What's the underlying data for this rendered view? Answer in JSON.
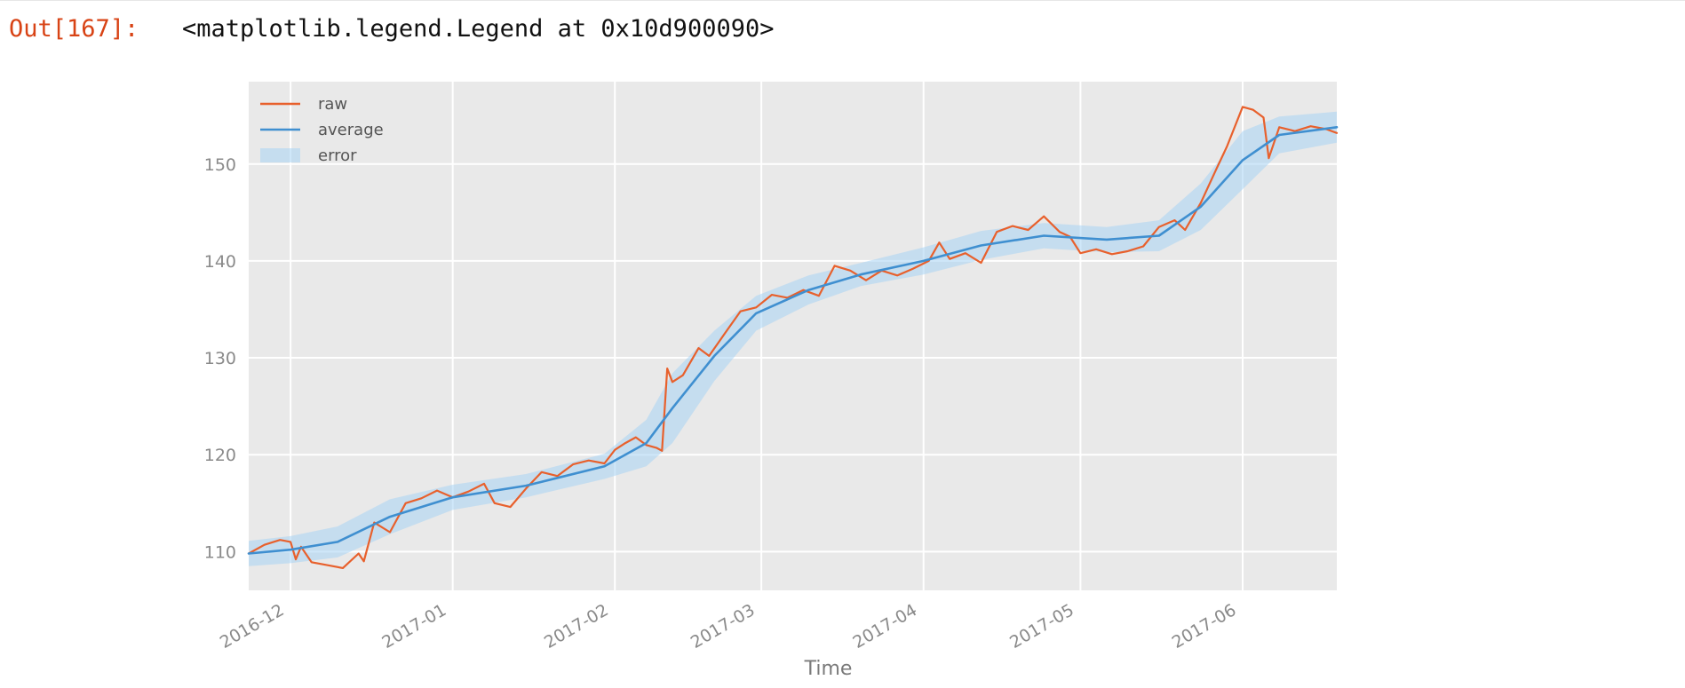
{
  "cell_output": {
    "prompt": "Out[167]:",
    "text": "<matplotlib.legend.Legend at 0x10d900090>"
  },
  "colors": {
    "prompt": "#d84315",
    "raw": "#e8602c",
    "average": "#3f8fd0",
    "error_band": "#a8d4f4",
    "axes_bg": "#e9e9e9",
    "grid": "#ffffff",
    "tick_text": "#8a8a8a"
  },
  "chart_data": {
    "type": "line",
    "style": "ggplot",
    "title": "",
    "xlabel": "Time",
    "ylabel": "",
    "xlim": [
      "2016-11-23",
      "2017-06-19"
    ],
    "ylim": [
      106,
      158.5
    ],
    "x_ticks": [
      "2016-12",
      "2017-01",
      "2017-02",
      "2017-03",
      "2017-04",
      "2017-05",
      "2017-06"
    ],
    "y_ticks": [
      110,
      120,
      130,
      140,
      150
    ],
    "grid": true,
    "legend": {
      "position": "upper-left",
      "entries": [
        "raw",
        "average",
        "error"
      ]
    },
    "series": [
      {
        "name": "raw",
        "color": "#e8602c",
        "points": [
          [
            "2016-11-23",
            109.8
          ],
          [
            "2016-11-26",
            110.7
          ],
          [
            "2016-11-29",
            111.2
          ],
          [
            "2016-12-01",
            111.0
          ],
          [
            "2016-12-02",
            109.2
          ],
          [
            "2016-12-03",
            110.5
          ],
          [
            "2016-12-05",
            108.9
          ],
          [
            "2016-12-08",
            108.6
          ],
          [
            "2016-12-11",
            108.3
          ],
          [
            "2016-12-14",
            109.8
          ],
          [
            "2016-12-15",
            109.0
          ],
          [
            "2016-12-17",
            113.0
          ],
          [
            "2016-12-20",
            112.0
          ],
          [
            "2016-12-23",
            115.0
          ],
          [
            "2016-12-26",
            115.5
          ],
          [
            "2016-12-29",
            116.3
          ],
          [
            "2017-01-01",
            115.6
          ],
          [
            "2017-01-04",
            116.2
          ],
          [
            "2017-01-07",
            117.0
          ],
          [
            "2017-01-09",
            115.0
          ],
          [
            "2017-01-12",
            114.6
          ],
          [
            "2017-01-15",
            116.5
          ],
          [
            "2017-01-18",
            118.2
          ],
          [
            "2017-01-21",
            117.8
          ],
          [
            "2017-01-24",
            119.0
          ],
          [
            "2017-01-27",
            119.4
          ],
          [
            "2017-01-30",
            119.1
          ],
          [
            "2017-02-01",
            120.5
          ],
          [
            "2017-02-03",
            121.2
          ],
          [
            "2017-02-05",
            121.8
          ],
          [
            "2017-02-07",
            121.0
          ],
          [
            "2017-02-09",
            120.7
          ],
          [
            "2017-02-10",
            120.4
          ],
          [
            "2017-02-11",
            128.9
          ],
          [
            "2017-02-12",
            127.5
          ],
          [
            "2017-02-14",
            128.2
          ],
          [
            "2017-02-17",
            131.0
          ],
          [
            "2017-02-19",
            130.2
          ],
          [
            "2017-02-22",
            132.5
          ],
          [
            "2017-02-25",
            134.8
          ],
          [
            "2017-02-28",
            135.2
          ],
          [
            "2017-03-03",
            136.5
          ],
          [
            "2017-03-06",
            136.2
          ],
          [
            "2017-03-09",
            137.0
          ],
          [
            "2017-03-12",
            136.4
          ],
          [
            "2017-03-15",
            139.5
          ],
          [
            "2017-03-18",
            139.0
          ],
          [
            "2017-03-21",
            138.0
          ],
          [
            "2017-03-24",
            139.0
          ],
          [
            "2017-03-27",
            138.5
          ],
          [
            "2017-03-30",
            139.2
          ],
          [
            "2017-04-02",
            140.0
          ],
          [
            "2017-04-04",
            141.9
          ],
          [
            "2017-04-06",
            140.2
          ],
          [
            "2017-04-09",
            140.8
          ],
          [
            "2017-04-12",
            139.8
          ],
          [
            "2017-04-15",
            143.0
          ],
          [
            "2017-04-18",
            143.6
          ],
          [
            "2017-04-21",
            143.2
          ],
          [
            "2017-04-24",
            144.6
          ],
          [
            "2017-04-27",
            143.0
          ],
          [
            "2017-04-29",
            142.5
          ],
          [
            "2017-05-01",
            140.8
          ],
          [
            "2017-05-04",
            141.2
          ],
          [
            "2017-05-07",
            140.7
          ],
          [
            "2017-05-10",
            141.0
          ],
          [
            "2017-05-13",
            141.5
          ],
          [
            "2017-05-16",
            143.5
          ],
          [
            "2017-05-19",
            144.2
          ],
          [
            "2017-05-21",
            143.2
          ],
          [
            "2017-05-24",
            146.0
          ],
          [
            "2017-05-27",
            149.5
          ],
          [
            "2017-05-29",
            151.8
          ],
          [
            "2017-06-01",
            155.9
          ],
          [
            "2017-06-03",
            155.6
          ],
          [
            "2017-06-05",
            154.8
          ],
          [
            "2017-06-06",
            150.6
          ],
          [
            "2017-06-08",
            153.8
          ],
          [
            "2017-06-11",
            153.4
          ],
          [
            "2017-06-14",
            153.9
          ],
          [
            "2017-06-17",
            153.6
          ],
          [
            "2017-06-19",
            153.2
          ]
        ]
      },
      {
        "name": "average",
        "color": "#3f8fd0",
        "points": [
          [
            "2016-11-23",
            109.8
          ],
          [
            "2016-12-01",
            110.2
          ],
          [
            "2016-12-10",
            111.0
          ],
          [
            "2016-12-20",
            113.6
          ],
          [
            "2017-01-01",
            115.6
          ],
          [
            "2017-01-15",
            116.8
          ],
          [
            "2017-01-30",
            118.8
          ],
          [
            "2017-02-07",
            121.2
          ],
          [
            "2017-02-12",
            124.8
          ],
          [
            "2017-02-20",
            130.2
          ],
          [
            "2017-02-28",
            134.6
          ],
          [
            "2017-03-10",
            137.0
          ],
          [
            "2017-03-20",
            138.6
          ],
          [
            "2017-04-01",
            140.0
          ],
          [
            "2017-04-12",
            141.6
          ],
          [
            "2017-04-24",
            142.6
          ],
          [
            "2017-05-06",
            142.2
          ],
          [
            "2017-05-16",
            142.6
          ],
          [
            "2017-05-24",
            145.6
          ],
          [
            "2017-06-01",
            150.4
          ],
          [
            "2017-06-08",
            153.0
          ],
          [
            "2017-06-19",
            153.8
          ]
        ]
      },
      {
        "name": "error",
        "color": "#a8d4f4",
        "points": [
          [
            "2016-11-23",
            109.8,
            1.3
          ],
          [
            "2016-12-01",
            110.2,
            1.4
          ],
          [
            "2016-12-10",
            111.0,
            1.6
          ],
          [
            "2016-12-20",
            113.6,
            1.8
          ],
          [
            "2017-01-01",
            115.6,
            1.3
          ],
          [
            "2017-01-15",
            116.8,
            1.2
          ],
          [
            "2017-01-30",
            118.8,
            1.3
          ],
          [
            "2017-02-07",
            121.2,
            2.4
          ],
          [
            "2017-02-12",
            124.8,
            3.6
          ],
          [
            "2017-02-20",
            130.2,
            2.6
          ],
          [
            "2017-02-28",
            134.6,
            1.8
          ],
          [
            "2017-03-10",
            137.0,
            1.5
          ],
          [
            "2017-03-20",
            138.6,
            1.2
          ],
          [
            "2017-04-01",
            140.0,
            1.4
          ],
          [
            "2017-04-12",
            141.6,
            1.5
          ],
          [
            "2017-04-24",
            142.6,
            1.3
          ],
          [
            "2017-05-06",
            142.2,
            1.3
          ],
          [
            "2017-05-16",
            142.6,
            1.6
          ],
          [
            "2017-05-24",
            145.6,
            2.4
          ],
          [
            "2017-06-01",
            150.4,
            3.0
          ],
          [
            "2017-06-08",
            153.0,
            1.9
          ],
          [
            "2017-06-19",
            153.8,
            1.6
          ]
        ]
      }
    ]
  }
}
